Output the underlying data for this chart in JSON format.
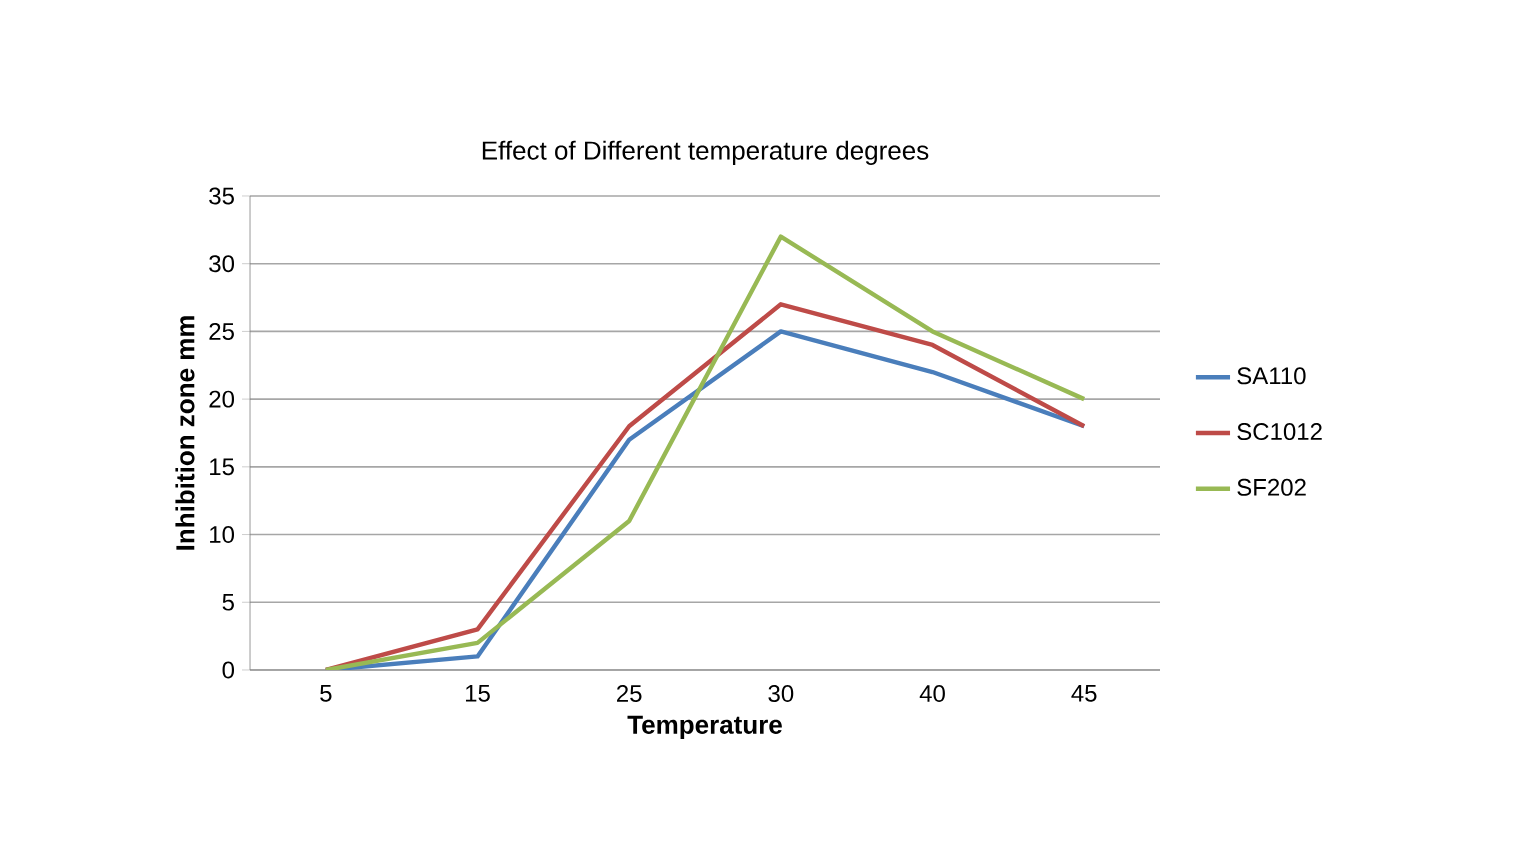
{
  "chart_data": {
    "type": "line",
    "title": "Effect of Different temperature degrees",
    "xlabel": "Temperature",
    "ylabel": "Inhibition zone mm",
    "categories": [
      "5",
      "15",
      "25",
      "30",
      "40",
      "45"
    ],
    "series": [
      {
        "name": "SA110",
        "color": "#4a7ebb",
        "values": [
          0,
          1,
          17,
          25,
          22,
          18
        ]
      },
      {
        "name": "SC1012",
        "color": "#be4b48",
        "values": [
          0,
          3,
          18,
          27,
          24,
          18
        ]
      },
      {
        "name": "SF202",
        "color": "#98b954",
        "values": [
          0,
          2,
          11,
          32,
          25,
          20
        ]
      }
    ],
    "ylim": [
      0,
      35
    ],
    "yticks": [
      0,
      5,
      10,
      15,
      20,
      25,
      30,
      35
    ],
    "grid": "y",
    "legend": "right",
    "marker": "none",
    "line_style": "solid"
  }
}
